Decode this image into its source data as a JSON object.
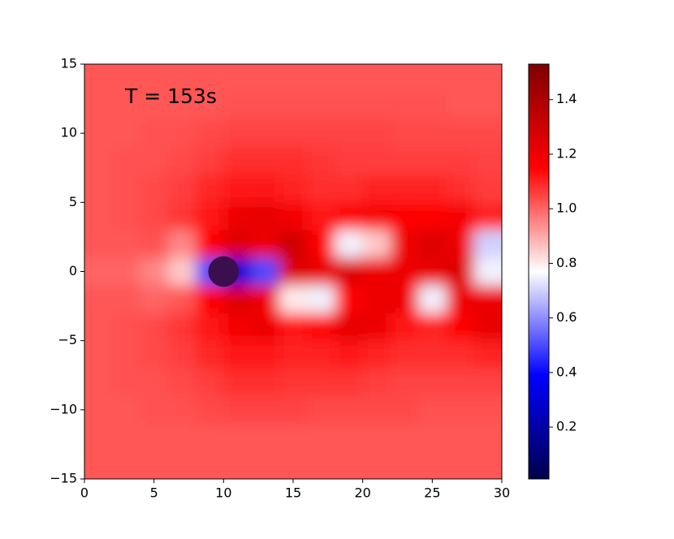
{
  "chart_data": {
    "type": "heatmap",
    "annotation": "T = 153s",
    "colormap": "seismic",
    "x": [
      1,
      3,
      5,
      7,
      9,
      11,
      13,
      15,
      17,
      19,
      21,
      23,
      25,
      27,
      29
    ],
    "y": [
      14,
      12,
      10,
      8,
      6,
      4,
      2,
      0,
      -2,
      -4,
      -6,
      -8,
      -10,
      -12,
      -14
    ],
    "z": [
      [
        1.02,
        1.02,
        1.02,
        1.02,
        1.02,
        1.02,
        1.02,
        1.02,
        1.02,
        1.02,
        1.02,
        1.02,
        1.02,
        1.02,
        1.02
      ],
      [
        1.02,
        1.02,
        1.02,
        1.02,
        1.02,
        1.03,
        1.03,
        1.03,
        1.03,
        1.03,
        1.03,
        1.03,
        1.03,
        1.02,
        1.02
      ],
      [
        1.02,
        1.02,
        1.03,
        1.03,
        1.04,
        1.05,
        1.05,
        1.05,
        1.05,
        1.05,
        1.05,
        1.04,
        1.04,
        1.04,
        1.04
      ],
      [
        1.02,
        1.03,
        1.03,
        1.04,
        1.06,
        1.08,
        1.08,
        1.08,
        1.07,
        1.06,
        1.06,
        1.06,
        1.06,
        1.06,
        1.05
      ],
      [
        1.02,
        1.03,
        1.04,
        1.06,
        1.09,
        1.12,
        1.12,
        1.1,
        1.08,
        1.08,
        1.1,
        1.1,
        1.1,
        1.08,
        1.06
      ],
      [
        1.02,
        1.03,
        1.04,
        1.07,
        1.12,
        1.2,
        1.22,
        1.18,
        1.12,
        1.15,
        1.18,
        1.15,
        1.15,
        1.18,
        1.1
      ],
      [
        1.02,
        1.02,
        1.03,
        0.95,
        1.15,
        1.25,
        1.2,
        1.3,
        1.15,
        0.75,
        0.85,
        1.2,
        1.25,
        1.2,
        0.7
      ],
      [
        1.0,
        1.0,
        0.95,
        0.85,
        0.5,
        0.3,
        0.5,
        1.25,
        1.22,
        1.25,
        1.2,
        1.2,
        1.22,
        1.25,
        0.75
      ],
      [
        1.02,
        1.02,
        1.0,
        1.02,
        1.15,
        1.25,
        1.2,
        0.8,
        0.75,
        1.15,
        1.2,
        1.2,
        0.75,
        1.2,
        1.2
      ],
      [
        1.02,
        1.03,
        1.04,
        1.07,
        1.12,
        1.18,
        1.2,
        1.12,
        1.15,
        1.22,
        1.2,
        1.12,
        1.1,
        1.15,
        1.22
      ],
      [
        1.02,
        1.03,
        1.04,
        1.06,
        1.09,
        1.12,
        1.12,
        1.1,
        1.1,
        1.12,
        1.1,
        1.08,
        1.08,
        1.08,
        1.1
      ],
      [
        1.02,
        1.03,
        1.03,
        1.04,
        1.06,
        1.08,
        1.08,
        1.07,
        1.07,
        1.07,
        1.06,
        1.05,
        1.05,
        1.05,
        1.05
      ],
      [
        1.02,
        1.02,
        1.03,
        1.03,
        1.04,
        1.05,
        1.05,
        1.05,
        1.04,
        1.04,
        1.04,
        1.04,
        1.03,
        1.03,
        1.03
      ],
      [
        1.02,
        1.02,
        1.02,
        1.02,
        1.02,
        1.02,
        1.02,
        1.02,
        1.02,
        1.02,
        1.02,
        1.02,
        1.02,
        1.02,
        1.02
      ],
      [
        1.02,
        1.02,
        1.02,
        1.02,
        1.02,
        1.02,
        1.02,
        1.02,
        1.02,
        1.02,
        1.02,
        1.02,
        1.02,
        1.02,
        1.02
      ]
    ],
    "cylinder": {
      "x": 10,
      "y": 0,
      "radius": 1.1,
      "color": "#3b0f4f"
    },
    "xlim": [
      0,
      30
    ],
    "xticks": [
      0,
      5,
      10,
      15,
      20,
      25,
      30
    ],
    "ylim": [
      -15,
      15
    ],
    "yticks": [
      {
        "value": -15,
        "label": "−15"
      },
      {
        "value": -10,
        "label": "−10"
      },
      {
        "value": -5,
        "label": "−5"
      },
      0,
      5,
      10,
      15
    ],
    "colorbar_lim": [
      0.01,
      1.53
    ],
    "colorbar_ticks": [
      0.2,
      0.4,
      0.6,
      0.8,
      {
        "value": 1,
        "label": "1.0"
      },
      1.2,
      1.4
    ]
  }
}
